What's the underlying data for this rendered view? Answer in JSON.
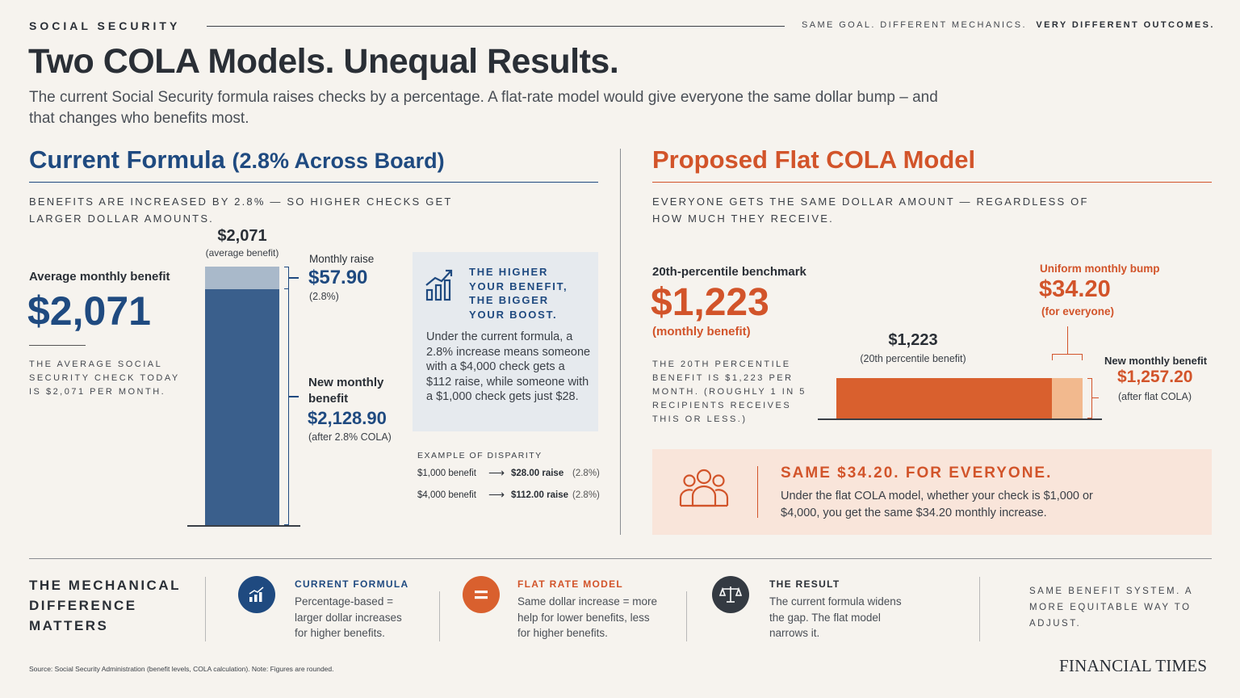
{
  "header": {
    "kicker": "SOCIAL SECURITY",
    "tagline_regular": "SAME GOAL. DIFFERENT MECHANICS.",
    "tagline_bold": "VERY DIFFERENT OUTCOMES."
  },
  "title": "Two COLA Models. Unequal Results.",
  "subtitle": "The current Social Security formula raises checks by a percentage. A flat-rate model would give everyone the same dollar bump – and that changes who benefits most.",
  "left": {
    "heading_main": "Current Formula",
    "heading_sub": "(2.8% Across Board)",
    "description": "BENEFITS ARE INCREASED BY 2.8% — SO HIGHER CHECKS GET LARGER DOLLAR AMOUNTS.",
    "avg_label": "Average monthly benefit",
    "avg_value": "$2,071",
    "avg_note": "THE AVERAGE SOCIAL SECURITY CHECK TODAY IS $2,071 PER MONTH.",
    "bar_top_value": "$2,071",
    "bar_top_note": "(average benefit)",
    "raise_label": "Monthly raise",
    "raise_value": "$57.90",
    "raise_pct": "(2.8%)",
    "new_label": "New monthly benefit",
    "new_value": "$2,128.90",
    "new_note": "(after 2.8% COLA)",
    "bar": {
      "base": 2071,
      "raise": 57.9
    },
    "callout_title": "THE HIGHER YOUR BENEFIT, THE BIGGER YOUR BOOST.",
    "callout_text": "Under the current formula, a 2.8% increase means someone with a $4,000 check gets a $112 raise, while someone with a $1,000 check gets just $28.",
    "disparity_title": "EXAMPLE OF DISPARITY",
    "disparity": [
      {
        "benefit": "$1,000 benefit",
        "raise": "$28.00 raise",
        "pct": "(2.8%)"
      },
      {
        "benefit": "$4,000 benefit",
        "raise": "$112.00 raise",
        "pct": "(2.8%)"
      }
    ]
  },
  "right": {
    "heading": "Proposed Flat COLA Model",
    "description": "EVERYONE GETS THE SAME DOLLAR AMOUNT — REGARDLESS OF HOW MUCH THEY RECEIVE.",
    "bench_label": "20th-percentile benchmark",
    "bench_value": "$1,223",
    "bench_sub": "(monthly benefit)",
    "bench_note": "THE 20TH PERCENTILE BENEFIT IS $1,223 PER MONTH. (ROUGHLY 1 IN 5 RECIPIENTS RECEIVES THIS OR LESS.)",
    "bump_label": "Uniform monthly bump",
    "bump_value": "$34.20",
    "bump_note": "(for everyone)",
    "bar_value": "$1,223",
    "bar_note": "(20th percentile benefit)",
    "new_label": "New monthly benefit",
    "new_value": "$1,257.20",
    "new_note": "(after flat COLA)",
    "bar": {
      "base": 1223,
      "bump": 34.2
    },
    "banner_title": "SAME $34.20. FOR EVERYONE.",
    "banner_text": "Under the flat COLA model, whether your check is $1,000 or $4,000, you get the same $34.20 monthly increase."
  },
  "bottom": {
    "heading": "THE MECHANICAL DIFFERENCE MATTERS",
    "items": [
      {
        "icon": "chart-up-icon",
        "title": "CURRENT FORMULA",
        "text": "Percentage-based = larger dollar increases for higher benefits."
      },
      {
        "icon": "equals-icon",
        "title": "FLAT RATE MODEL",
        "text": "Same dollar increase = more help for lower benefits, less for higher benefits."
      },
      {
        "icon": "scales-icon",
        "title": "THE RESULT",
        "text": "The current formula widens the gap. The flat model narrows it."
      }
    ],
    "closing": "SAME BENEFIT SYSTEM. A MORE EQUITABLE WAY TO ADJUST."
  },
  "footer": {
    "source": "Source: Social Security Administration (benefit levels, COLA calculation).  Note: Figures are rounded.",
    "brand": "FINANCIAL TIMES"
  },
  "colors": {
    "navy": "#1f4a80",
    "orange": "#d2542a",
    "bar_blue": "#3a5f8c",
    "bar_orange": "#d9602e"
  }
}
